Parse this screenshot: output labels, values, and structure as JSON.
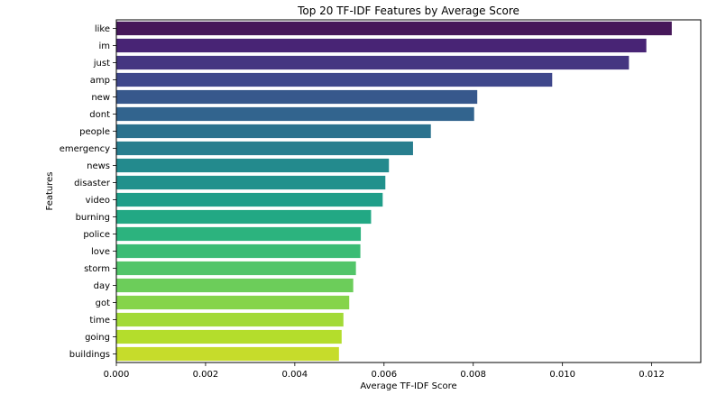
{
  "chart_data": {
    "type": "bar",
    "orientation": "horizontal",
    "title": "Top 20 TF-IDF Features by Average Score",
    "xlabel": "Average TF-IDF Score",
    "ylabel": "Features",
    "xlim": [
      0,
      0.0131
    ],
    "xticks": [
      0.0,
      0.002,
      0.004,
      0.006,
      0.008,
      0.01,
      0.012
    ],
    "xtick_labels": [
      "0.000",
      "0.002",
      "0.004",
      "0.006",
      "0.008",
      "0.010",
      "0.012"
    ],
    "grid": false,
    "colormap": "viridis",
    "categories": [
      "like",
      "im",
      "just",
      "amp",
      "new",
      "dont",
      "people",
      "emergency",
      "news",
      "disaster",
      "video",
      "burning",
      "police",
      "love",
      "storm",
      "day",
      "got",
      "time",
      "going",
      "buildings"
    ],
    "values": [
      0.01245,
      0.01188,
      0.01149,
      0.00977,
      0.00809,
      0.00802,
      0.00705,
      0.00665,
      0.00611,
      0.00603,
      0.00597,
      0.00571,
      0.00548,
      0.00547,
      0.00537,
      0.00531,
      0.00522,
      0.00509,
      0.00505,
      0.00499
    ],
    "colors": [
      "#46185a",
      "#482475",
      "#453681",
      "#3f478b",
      "#37588c",
      "#32648e",
      "#2b728e",
      "#287e8e",
      "#238a8d",
      "#21918c",
      "#1f9e89",
      "#22a884",
      "#2cb37e",
      "#3bbc75",
      "#52c569",
      "#6ccd5a",
      "#85d44a",
      "#a2da37",
      "#b4dd2c",
      "#c6dc2b"
    ]
  }
}
